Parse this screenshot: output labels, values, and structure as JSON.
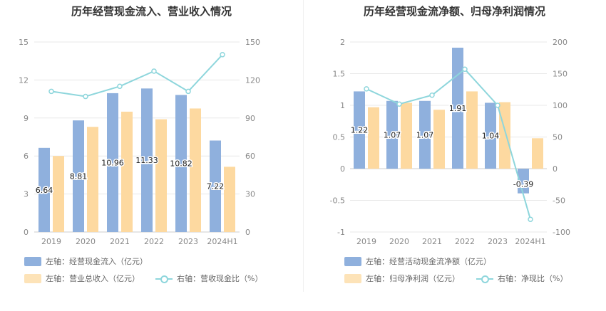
{
  "charts": [
    {
      "title": "历年经营现金流入、营业收入情况",
      "legend": {
        "bar1": "左轴：经营现金流入（亿元）",
        "bar2": "左轴：营业总收入（亿元）",
        "line": "右轴：营收现金比（%）"
      }
    },
    {
      "title": "历年经营现金流净额、归母净利润情况",
      "legend": {
        "bar1": "左轴：经营活动现金流净额（亿元）",
        "bar2": "左轴：归母净利润（亿元）",
        "line": "右轴：净现比（%）"
      }
    }
  ],
  "colors": {
    "bar1": "#8fb0dd",
    "bar2": "#fdd9a0",
    "line": "#8ed6dc",
    "grid": "#e8e8e8"
  },
  "chart_data": [
    {
      "type": "bar",
      "categories": [
        "2019",
        "2020",
        "2021",
        "2022",
        "2023",
        "2024H1"
      ],
      "series": [
        {
          "name": "经营现金流入（亿元）",
          "axis": "left",
          "type": "bar",
          "values": [
            6.64,
            8.81,
            10.96,
            11.33,
            10.82,
            7.22
          ],
          "labels": [
            "6.64",
            "8.81",
            "10.96",
            "11.33",
            "10.82",
            "7.22"
          ]
        },
        {
          "name": "营业总收入（亿元）",
          "axis": "left",
          "type": "bar",
          "values": [
            6.0,
            8.3,
            9.5,
            8.9,
            9.75,
            5.15
          ]
        },
        {
          "name": "营收现金比（%）",
          "axis": "right",
          "type": "line",
          "values": [
            111,
            107,
            115,
            127,
            111,
            140
          ]
        }
      ],
      "left_axis": {
        "ylim": [
          0,
          15
        ],
        "ticks": [
          "0",
          "3",
          "6",
          "9",
          "12",
          "15"
        ]
      },
      "right_axis": {
        "ylim": [
          0,
          150
        ],
        "ticks": [
          "0",
          "30",
          "60",
          "90",
          "120",
          "150"
        ]
      },
      "grid": true,
      "legend_position": "bottom-left"
    },
    {
      "type": "bar",
      "categories": [
        "2019",
        "2020",
        "2021",
        "2022",
        "2023",
        "2024H1"
      ],
      "series": [
        {
          "name": "经营活动现金流净额（亿元）",
          "axis": "left",
          "type": "bar",
          "values": [
            1.22,
            1.07,
            1.07,
            1.91,
            1.04,
            -0.39
          ],
          "labels": [
            "1.22",
            "1.07",
            "1.07",
            "1.91",
            "1.04",
            "-0.39"
          ]
        },
        {
          "name": "归母净利润（亿元）",
          "axis": "left",
          "type": "bar",
          "values": [
            0.97,
            1.04,
            0.93,
            1.22,
            1.05,
            0.48
          ]
        },
        {
          "name": "净现比（%）",
          "axis": "right",
          "type": "line",
          "values": [
            126,
            102,
            116,
            157,
            100,
            -80
          ]
        }
      ],
      "left_axis": {
        "ylim": [
          -1,
          2
        ],
        "ticks": [
          "-1",
          "-0.5",
          "0",
          "0.5",
          "1",
          "1.5",
          "2"
        ]
      },
      "right_axis": {
        "ylim": [
          -100,
          200
        ],
        "ticks": [
          "-100",
          "-50",
          "0",
          "50",
          "100",
          "150",
          "200"
        ]
      },
      "grid": true,
      "legend_position": "bottom-left"
    }
  ]
}
